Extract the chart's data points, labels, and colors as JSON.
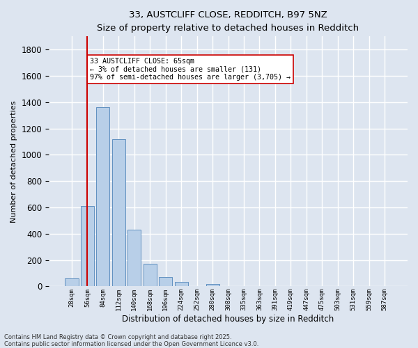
{
  "title_line1": "33, AUSTCLIFF CLOSE, REDDITCH, B97 5NZ",
  "title_line2": "Size of property relative to detached houses in Redditch",
  "xlabel": "Distribution of detached houses by size in Redditch",
  "ylabel": "Number of detached properties",
  "categories": [
    "28sqm",
    "56sqm",
    "84sqm",
    "112sqm",
    "140sqm",
    "168sqm",
    "196sqm",
    "224sqm",
    "252sqm",
    "280sqm",
    "308sqm",
    "335sqm",
    "363sqm",
    "391sqm",
    "419sqm",
    "447sqm",
    "475sqm",
    "503sqm",
    "531sqm",
    "559sqm",
    "587sqm"
  ],
  "values": [
    60,
    610,
    1360,
    1120,
    430,
    170,
    70,
    35,
    0,
    20,
    0,
    0,
    0,
    0,
    0,
    0,
    0,
    0,
    0,
    0,
    0
  ],
  "bar_color": "#b8cfe8",
  "bar_edge_color": "#6090c0",
  "vline_x": 1,
  "vline_color": "#cc0000",
  "annotation_text": "33 AUSTCLIFF CLOSE: 65sqm\n← 3% of detached houses are smaller (131)\n97% of semi-detached houses are larger (3,705) →",
  "annotation_box_color": "#ffffff",
  "annotation_box_edge_color": "#cc0000",
  "ylim": [
    0,
    1900
  ],
  "yticks": [
    0,
    200,
    400,
    600,
    800,
    1000,
    1200,
    1400,
    1600,
    1800
  ],
  "background_color": "#dde5f0",
  "grid_color": "#ffffff",
  "footnote": "Contains HM Land Registry data © Crown copyright and database right 2025.\nContains public sector information licensed under the Open Government Licence v3.0."
}
